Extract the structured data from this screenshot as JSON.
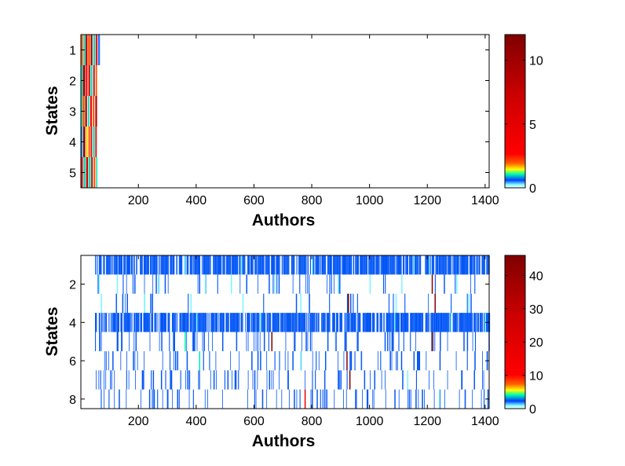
{
  "chart_data": [
    {
      "type": "heatmap",
      "title": "",
      "xlabel": "Authors",
      "ylabel": "States",
      "xlim": [
        1,
        1414
      ],
      "ylim": [
        0.5,
        5.5
      ],
      "x_ticks": [
        200,
        400,
        600,
        800,
        1000,
        1200,
        1400
      ],
      "y_ticks": [
        1,
        2,
        3,
        4,
        5
      ],
      "colorbar": {
        "colormap": "jet-modified",
        "min": 0,
        "max": 12,
        "ticks": [
          0,
          5,
          10
        ]
      },
      "rows": [
        {
          "state": 1,
          "segments": [
            [
              1,
              8,
              2
            ],
            [
              10,
              16,
              1
            ],
            [
              17,
              24,
              8
            ],
            [
              26,
              33,
              2
            ],
            [
              35,
              41,
              11
            ],
            [
              44,
              50,
              1
            ],
            [
              52,
              58,
              4
            ],
            [
              60,
              67,
              0.5
            ]
          ]
        },
        {
          "state": 2,
          "segments": [
            [
              1,
              7,
              1
            ],
            [
              8,
              16,
              10
            ],
            [
              18,
              24,
              3
            ],
            [
              27,
              33,
              6
            ],
            [
              35,
              41,
              1
            ],
            [
              44,
              49,
              8
            ],
            [
              52,
              57,
              2
            ]
          ]
        },
        {
          "state": 3,
          "segments": [
            [
              1,
              6,
              1
            ],
            [
              7,
              14,
              2
            ],
            [
              16,
              22,
              11
            ],
            [
              25,
              30,
              1
            ],
            [
              33,
              39,
              4
            ],
            [
              42,
              48,
              2
            ],
            [
              51,
              57,
              9
            ]
          ]
        },
        {
          "state": 4,
          "segments": [
            [
              1,
              7,
              0.8
            ],
            [
              9,
              16,
              11
            ],
            [
              18,
              24,
              1.6
            ],
            [
              27,
              33,
              2
            ],
            [
              35,
              40,
              5
            ],
            [
              43,
              49,
              1
            ],
            [
              51,
              56,
              3
            ]
          ]
        },
        {
          "state": 5,
          "segments": [
            [
              1,
              8,
              4
            ],
            [
              10,
              17,
              1
            ],
            [
              19,
              26,
              7
            ],
            [
              28,
              35,
              1
            ],
            [
              37,
              42,
              10
            ],
            [
              45,
              51,
              2
            ],
            [
              54,
              58,
              1
            ]
          ]
        }
      ]
    },
    {
      "type": "heatmap",
      "title": "",
      "xlabel": "Authors",
      "ylabel": "States",
      "xlim": [
        1,
        1414
      ],
      "ylim": [
        0.5,
        8.5
      ],
      "x_ticks": [
        200,
        400,
        600,
        800,
        1000,
        1200,
        1400
      ],
      "y_ticks": [
        2,
        4,
        6,
        8
      ],
      "colorbar": {
        "colormap": "jet-modified",
        "min": 0,
        "max": 46,
        "ticks": [
          0,
          10,
          20,
          30,
          40
        ]
      },
      "rows": [
        {
          "state": 1,
          "start": 50,
          "end": 1414,
          "density": 0.78,
          "value": 2.5,
          "spikes": [
            [
              360,
              1
            ],
            [
              555,
              1
            ],
            [
              800,
              1
            ],
            [
              1152,
              1
            ],
            [
              1205,
              1
            ]
          ]
        },
        {
          "state": 2,
          "start": 50,
          "end": 1414,
          "density": 0.05,
          "value": 2.5,
          "spikes": [
            [
              62,
              1
            ],
            [
              125,
              1
            ],
            [
              270,
              1
            ],
            [
              430,
              1
            ],
            [
              520,
              1
            ],
            [
              670,
              1
            ],
            [
              890,
              1
            ],
            [
              1000,
              1
            ],
            [
              1110,
              1
            ],
            [
              1215,
              46
            ],
            [
              1300,
              1
            ]
          ]
        },
        {
          "state": 3,
          "start": 50,
          "end": 1414,
          "density": 0.05,
          "value": 2.5,
          "spikes": [
            [
              70,
              1
            ],
            [
              220,
              1
            ],
            [
              380,
              1
            ],
            [
              560,
              1
            ],
            [
              760,
              1
            ],
            [
              925,
              46
            ],
            [
              1090,
              1
            ],
            [
              1225,
              46
            ],
            [
              1340,
              1
            ]
          ]
        },
        {
          "state": 4,
          "start": 50,
          "end": 1414,
          "density": 0.78,
          "value": 2.5,
          "spikes": [
            [
              400,
              1
            ],
            [
              620,
              1
            ],
            [
              1085,
              1
            ],
            [
              1280,
              1
            ],
            [
              1398,
              1
            ]
          ]
        },
        {
          "state": 5,
          "start": 50,
          "end": 1414,
          "density": 0.12,
          "value": 2.5,
          "spikes": [
            [
              360,
              4
            ],
            [
              660,
              46
            ],
            [
              1215,
              46
            ]
          ]
        },
        {
          "state": 6,
          "start": 50,
          "end": 1414,
          "density": 0.12,
          "value": 2.5,
          "spikes": [
            [
              410,
              4
            ],
            [
              760,
              1
            ],
            [
              920,
              46
            ]
          ]
        },
        {
          "state": 7,
          "start": 50,
          "end": 1414,
          "density": 0.14,
          "value": 2.5,
          "spikes": [
            [
              930,
              46
            ],
            [
              1130,
              1
            ]
          ]
        },
        {
          "state": 8,
          "start": 50,
          "end": 1414,
          "density": 0.14,
          "value": 2.5,
          "spikes": [
            [
              775,
              20
            ],
            [
              1240,
              1
            ]
          ]
        }
      ]
    }
  ]
}
